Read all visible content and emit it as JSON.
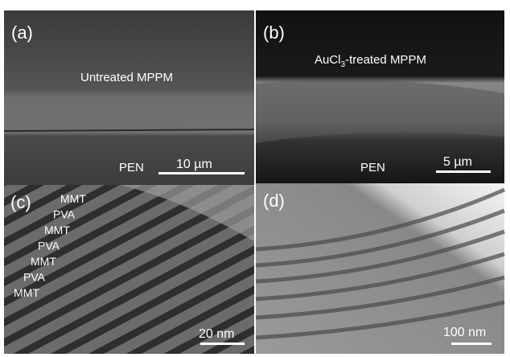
{
  "panels": [
    {
      "label": "(a)",
      "caption": "Untreated MPPM",
      "substrate": "PEN",
      "scale_bar": "10 µm"
    },
    {
      "label": "(b)",
      "caption_parts": [
        "AuCl",
        "3",
        "-treated MPPM"
      ],
      "substrate": "PEN",
      "scale_bar": "5 µm"
    },
    {
      "label": "(c)",
      "layers": [
        "MMT",
        "PVA",
        "MMT",
        "PVA",
        "MMT",
        "PVA",
        "MMT"
      ],
      "scale_bar": "20 nm"
    },
    {
      "label": "(d)",
      "scale_bar": "100 nm"
    }
  ]
}
